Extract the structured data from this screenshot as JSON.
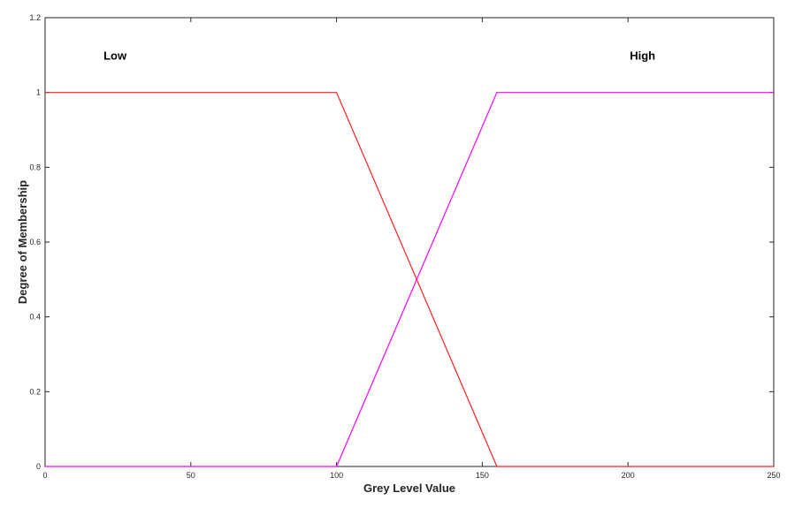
{
  "chart_data": {
    "type": "line",
    "title": "",
    "xlabel": "Grey Level Value",
    "ylabel": "Degree of Membership",
    "xlim": [
      0,
      250
    ],
    "ylim": [
      0,
      1.2
    ],
    "xticks": [
      0,
      50,
      100,
      150,
      200,
      250
    ],
    "xtick_labels": [
      "0",
      "50",
      "100",
      "150",
      "200",
      "250"
    ],
    "yticks": [
      0,
      0.2,
      0.4,
      0.6,
      0.8,
      1,
      1.2
    ],
    "ytick_labels": [
      "0",
      "0.2",
      "0.4",
      "0.6",
      "0.8",
      "1",
      "1.2"
    ],
    "grid": false,
    "series": [
      {
        "color": "#ff2020",
        "x": [
          0,
          100,
          155,
          250
        ],
        "y": [
          1,
          1,
          0,
          0
        ]
      },
      {
        "color": "#ff00ff",
        "x": [
          0,
          100,
          155,
          250
        ],
        "y": [
          0,
          0,
          1,
          1
        ]
      }
    ],
    "annotations": [
      {
        "text": "Low",
        "x": 24,
        "y": 1.1
      },
      {
        "text": "High",
        "x": 205,
        "y": 1.1
      }
    ]
  }
}
